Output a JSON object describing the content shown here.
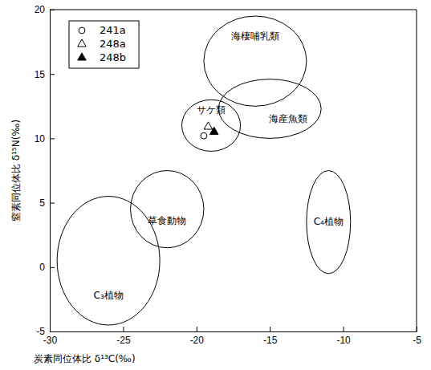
{
  "chart_data": {
    "type": "scatter",
    "x_label": "炭素同位体比 δ¹³C(‰)",
    "y_label": "窒素同位体比 δ¹⁵N(‰)",
    "xlim": [
      -30,
      -5
    ],
    "xticks": [
      -30,
      -25,
      -20,
      -15,
      -10,
      -5
    ],
    "ylim": [
      -5,
      20
    ],
    "yticks": [
      -5,
      0,
      5,
      10,
      15,
      20
    ],
    "legend": "upper left",
    "series": [
      {
        "name": "241a",
        "marker": "circle",
        "color": "#000000",
        "x": [
          -19.5
        ],
        "values": [
          10.2
        ]
      },
      {
        "name": "248a",
        "marker": "triangle",
        "color": "#000000",
        "x": [
          -19.2
        ],
        "values": [
          10.9
        ]
      },
      {
        "name": "248b",
        "marker": "triangle-filled",
        "color": "#000000",
        "x": [
          -18.8
        ],
        "values": [
          10.5
        ]
      }
    ],
    "regions": [
      {
        "name": "海棲哺乳類",
        "cx": -16,
        "cy": 16,
        "rx": 3.5,
        "ry": 3.5
      },
      {
        "name": "海産魚類",
        "cx": -15,
        "cy": 12.3,
        "rx": 3.5,
        "ry": 2.3
      },
      {
        "name": "サケ類",
        "cx": -19,
        "cy": 11,
        "rx": 2,
        "ry": 2
      },
      {
        "name": "草食動物",
        "cx": -22,
        "cy": 4.5,
        "rx": 2.5,
        "ry": 3
      },
      {
        "name": "C₄植物",
        "cx": -11,
        "cy": 3.5,
        "rx": 1.5,
        "ry": 4
      },
      {
        "name": "C₃植物",
        "cx": -26,
        "cy": 0.5,
        "rx": 3.5,
        "ry": 5
      }
    ]
  }
}
